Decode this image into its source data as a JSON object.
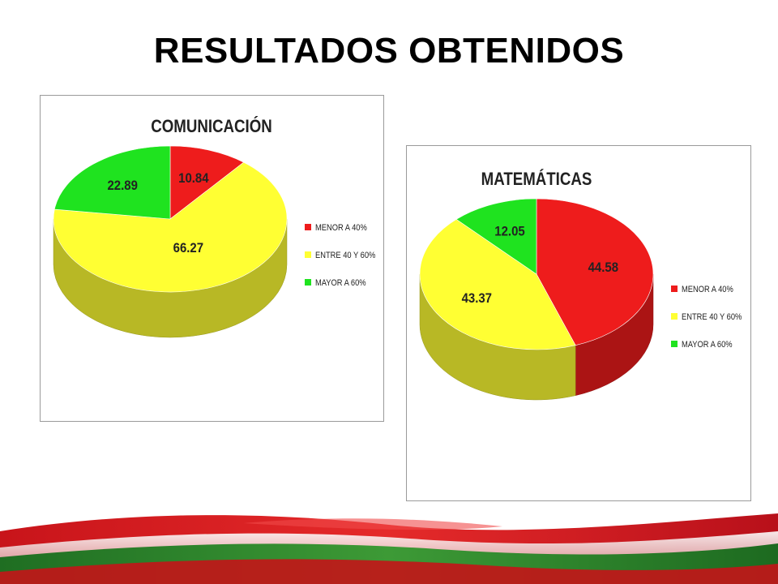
{
  "page": {
    "title": "RESULTADOS OBTENIDOS"
  },
  "colors": {
    "red": "#ee1c1c",
    "yellow": "#ffff33",
    "green": "#1fe31f",
    "band_red": "#d8181c",
    "band_green": "#2f8a2a"
  },
  "chart_data": [
    {
      "type": "pie",
      "title": "COMUNICACIÓN",
      "categories": [
        "MENOR A 40%",
        "ENTRE 40 Y 60%",
        "MAYOR A 60%"
      ],
      "values": [
        10.84,
        66.27,
        22.89
      ],
      "value_labels": [
        "10.84",
        "66.27",
        "22.89"
      ],
      "colors": [
        "#ee1c1c",
        "#ffff33",
        "#1fe31f"
      ],
      "style": "3d",
      "legend": "right"
    },
    {
      "type": "pie",
      "title": "MATEMÁTICAS",
      "categories": [
        "MENOR A 40%",
        "ENTRE 40 Y 60%",
        "MAYOR A 60%"
      ],
      "values": [
        44.58,
        43.37,
        12.05
      ],
      "value_labels": [
        "44.58",
        "43.37",
        "12.05"
      ],
      "colors": [
        "#ee1c1c",
        "#ffff33",
        "#1fe31f"
      ],
      "style": "3d",
      "legend": "right"
    }
  ]
}
